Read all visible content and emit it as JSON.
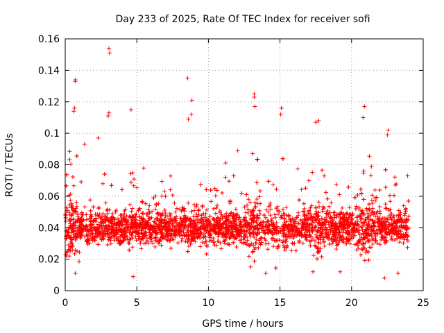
{
  "chart_data": {
    "type": "scatter",
    "title": "Day 233 of 2025, Rate Of TEC Index for receiver sofi",
    "xlabel": "GPS time / hours",
    "ylabel": "ROTI / TECUs",
    "xlim": [
      0,
      25
    ],
    "ylim": [
      0,
      0.16
    ],
    "x_ticks": [
      0,
      5,
      10,
      15,
      20,
      25
    ],
    "x_tick_labels": [
      "0",
      "5",
      "10",
      "15",
      "20",
      "25"
    ],
    "y_ticks": [
      0,
      0.02,
      0.04,
      0.06,
      0.08,
      0.1,
      0.12,
      0.14,
      0.16
    ],
    "y_tick_labels": [
      "0",
      "0.02",
      "0.04",
      "0.06",
      "0.08",
      "0.1",
      "0.12",
      "0.14",
      "0.16"
    ],
    "grid": true,
    "marker": "+",
    "color": "#ff0000",
    "data_range_hours": [
      0,
      24
    ],
    "typical_band": [
      0.02,
      0.06
    ],
    "notable_points": [
      {
        "x": 0.7,
        "y": 0.134
      },
      {
        "x": 0.7,
        "y": 0.133
      },
      {
        "x": 0.65,
        "y": 0.116
      },
      {
        "x": 0.6,
        "y": 0.114
      },
      {
        "x": 3.05,
        "y": 0.154
      },
      {
        "x": 3.1,
        "y": 0.151
      },
      {
        "x": 3.05,
        "y": 0.113
      },
      {
        "x": 3.0,
        "y": 0.111
      },
      {
        "x": 4.6,
        "y": 0.115
      },
      {
        "x": 8.55,
        "y": 0.135
      },
      {
        "x": 8.85,
        "y": 0.121
      },
      {
        "x": 8.8,
        "y": 0.112
      },
      {
        "x": 8.6,
        "y": 0.109
      },
      {
        "x": 13.2,
        "y": 0.125
      },
      {
        "x": 13.2,
        "y": 0.123
      },
      {
        "x": 13.25,
        "y": 0.117
      },
      {
        "x": 15.1,
        "y": 0.116
      },
      {
        "x": 15.05,
        "y": 0.112
      },
      {
        "x": 17.5,
        "y": 0.107
      },
      {
        "x": 17.7,
        "y": 0.108
      },
      {
        "x": 20.9,
        "y": 0.117
      },
      {
        "x": 20.8,
        "y": 0.11
      },
      {
        "x": 22.55,
        "y": 0.102
      },
      {
        "x": 22.5,
        "y": 0.099
      },
      {
        "x": 1.35,
        "y": 0.093
      },
      {
        "x": 2.3,
        "y": 0.097
      },
      {
        "x": 12.05,
        "y": 0.089
      },
      {
        "x": 22.3,
        "y": 0.008
      },
      {
        "x": 0.7,
        "y": 0.011
      },
      {
        "x": 4.75,
        "y": 0.009
      },
      {
        "x": 14.0,
        "y": 0.011
      },
      {
        "x": 17.3,
        "y": 0.012
      },
      {
        "x": 19.2,
        "y": 0.012
      },
      {
        "x": 23.25,
        "y": 0.011
      }
    ]
  }
}
